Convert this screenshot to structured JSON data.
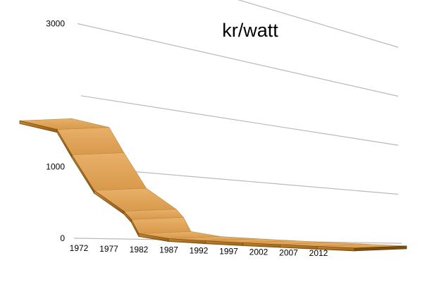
{
  "chart_data": {
    "type": "area",
    "title": "kr/watt",
    "xlabel": "",
    "ylabel": "",
    "style": "3d-ribbon",
    "ylim": [
      0,
      4000
    ],
    "yticks": [
      "0",
      "1000",
      "3000"
    ],
    "x_tick_labels": [
      "1972",
      "1977",
      "1982",
      "1987",
      "1992",
      "1997",
      "2002",
      "2007",
      "2012"
    ],
    "x": [
      1972,
      1977,
      1979,
      1982,
      1986,
      1987,
      1988,
      1992,
      1997,
      2002,
      2007,
      2012,
      2017
    ],
    "series": [
      {
        "values": [
          2350,
          2200,
          1700,
          1000,
          600,
          440,
          160,
          80,
          60,
          45,
          35,
          25,
          15
        ]
      }
    ],
    "colors": {
      "ribbon_top": "#e3a65c",
      "ribbon_side": "#b57c2c",
      "ribbon_edge": "#7a4e12",
      "grid": "#b9b9b9"
    },
    "grid": true,
    "legend": "none"
  }
}
